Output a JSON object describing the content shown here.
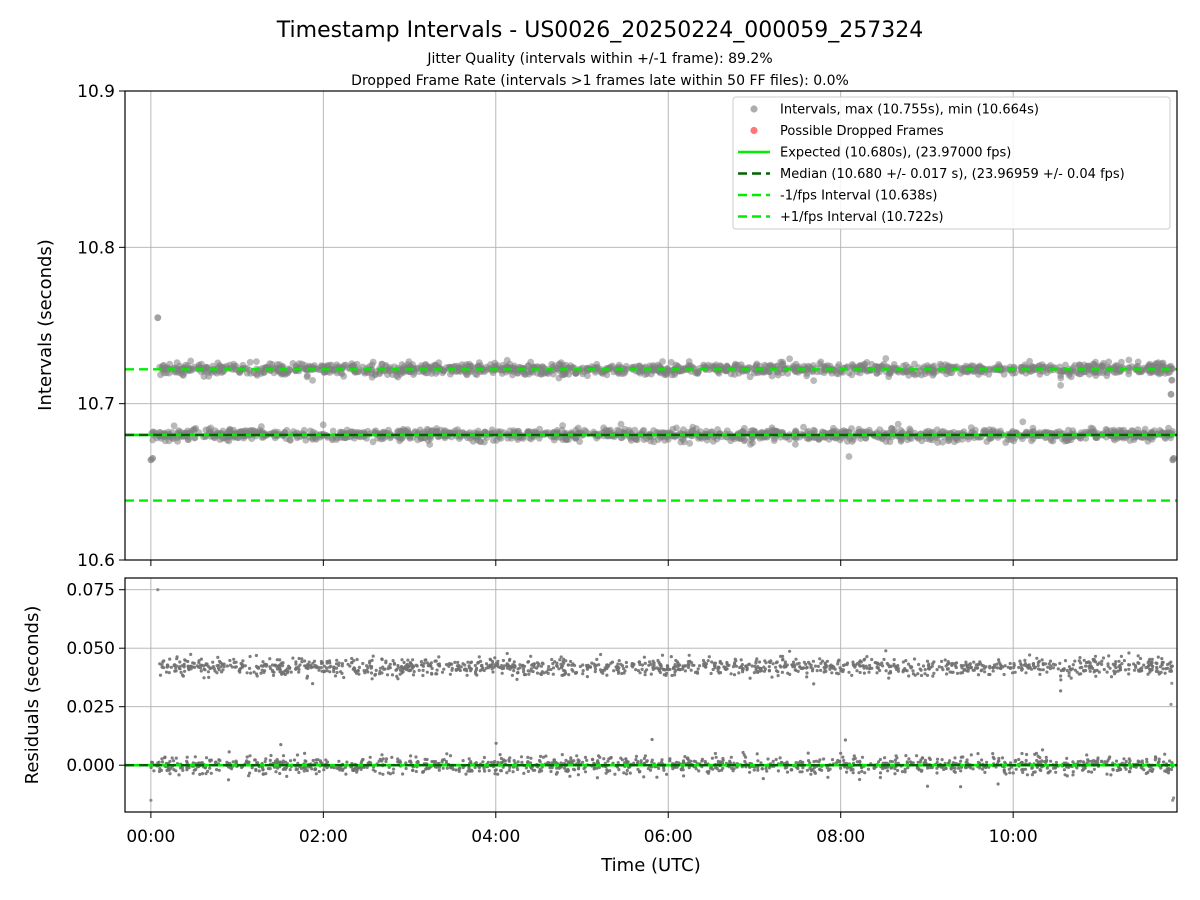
{
  "chart_data": [
    {
      "type": "scatter",
      "title": "Timestamp Intervals - US0026_20250224_000059_257324",
      "subtitle_lines": [
        "Jitter Quality (intervals within +/-1 frame): 89.2%",
        "Dropped Frame Rate (intervals >1 frames late within 50 FF files): 0.0%"
      ],
      "ylabel": "Intervals (seconds)",
      "ylim": [
        10.6,
        10.9
      ],
      "yticks": [
        "10.6",
        "10.7",
        "10.8",
        "10.9"
      ],
      "xlim_hours": [
        -0.3,
        11.9
      ],
      "grid": true,
      "legend_placement": "top-right",
      "legend": [
        {
          "label": "Intervals, max (10.755s), min (10.664s)",
          "kind": "marker",
          "color": "#999999"
        },
        {
          "label": "Possible Dropped Frames",
          "kind": "marker",
          "color": "#ff5555"
        },
        {
          "label": "Expected (10.680s), (23.97000 fps)",
          "kind": "solid",
          "color": "#00ee00"
        },
        {
          "label": "Median (10.680 +/- 0.017 s), (23.96959 +/- 0.04 fps)",
          "kind": "dashed",
          "color": "#006400"
        },
        {
          "label": "-1/fps Interval (10.638s)",
          "kind": "dashed",
          "color": "#00ee00"
        },
        {
          "label": "+1/fps Interval (10.722s)",
          "kind": "dashed",
          "color": "#00ee00"
        }
      ],
      "reference_lines": [
        {
          "name": "Expected",
          "y": 10.68,
          "color": "#00ee00",
          "style": "solid"
        },
        {
          "name": "Median",
          "y": 10.68,
          "color": "#006400",
          "style": "dashed"
        },
        {
          "name": "-1/fps Interval",
          "y": 10.638,
          "color": "#00ee00",
          "style": "dashed"
        },
        {
          "name": "+1/fps Interval",
          "y": 10.722,
          "color": "#00ee00",
          "style": "dashed"
        }
      ],
      "series": [
        {
          "bands": [
            {
              "y": 10.68,
              "spread": 0.0018,
              "x_start": 0.0,
              "x_end": 11.85
            },
            {
              "y": 10.722,
              "spread": 0.0018,
              "x_start": 0.1,
              "x_end": 11.85
            }
          ],
          "outliers": [
            {
              "x": 0.0,
              "y": 10.664
            },
            {
              "x": 0.02,
              "y": 10.665
            },
            {
              "x": 0.08,
              "y": 10.755
            },
            {
              "x": 11.83,
              "y": 10.706
            },
            {
              "x": 11.84,
              "y": 10.715
            },
            {
              "x": 11.85,
              "y": 10.664
            },
            {
              "x": 11.86,
              "y": 10.665
            }
          ]
        }
      ]
    },
    {
      "type": "scatter",
      "ylabel": "Residuals (seconds)",
      "xlabel": "Time (UTC)",
      "ylim": [
        -0.02,
        0.08
      ],
      "yticks": [
        "0.000",
        "0.025",
        "0.050",
        "0.075"
      ],
      "xlim_hours": [
        -0.3,
        11.9
      ],
      "xticks": [
        "00:00",
        "02:00",
        "04:00",
        "06:00",
        "08:00",
        "10:00"
      ],
      "grid": true,
      "reference_lines": [
        {
          "name": "Expected",
          "y": 0.0,
          "color": "#00ee00",
          "style": "solid"
        },
        {
          "name": "Median",
          "y": 0.0,
          "color": "#006400",
          "style": "dashed"
        }
      ],
      "series": [
        {
          "bands": [
            {
              "y": 0.0,
              "spread": 0.0018,
              "x_start": 0.0,
              "x_end": 11.85
            },
            {
              "y": 0.042,
              "spread": 0.0018,
              "x_start": 0.1,
              "x_end": 11.85
            }
          ],
          "outliers": [
            {
              "x": 0.0,
              "y": -0.015
            },
            {
              "x": 0.08,
              "y": 0.075
            },
            {
              "x": 11.83,
              "y": 0.026
            },
            {
              "x": 11.84,
              "y": 0.035
            },
            {
              "x": 11.85,
              "y": -0.015
            },
            {
              "x": 11.86,
              "y": -0.014
            }
          ]
        }
      ]
    }
  ]
}
